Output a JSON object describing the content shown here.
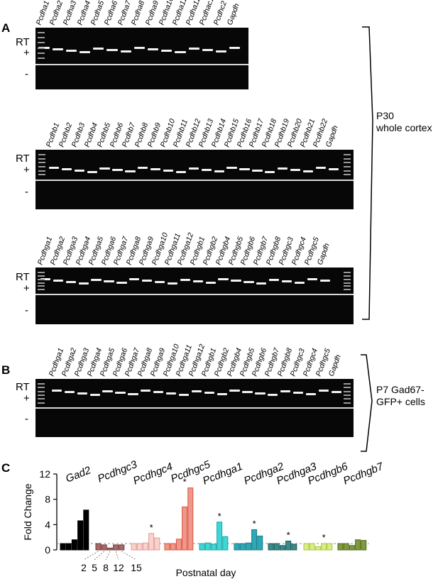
{
  "figure": {
    "panels": {
      "a": "A",
      "b": "B",
      "c": "C"
    },
    "rt_label": "RT",
    "plus": "+",
    "minus": "-",
    "p30_text_line1": "P30",
    "p30_text_line2": "whole cortex",
    "p7_text_line1": "P7 Gad67-",
    "p7_text_line2": "GFP+ cells",
    "gel1_lanes": [
      "Pcdha1",
      "Pcdha2",
      "Pcdha3",
      "Pcdha4",
      "Pcdha5",
      "Pcdha6",
      "Pcdha7",
      "Pcdha8",
      "Pcdha9",
      "Pcdha10",
      "Pcdha11",
      "Pcdha12",
      "Pcdhac1",
      "Pcdhc2",
      "Gapdh"
    ],
    "gel2_lanes": [
      "Pcdhb1",
      "Pcdhb2",
      "Pcdhb3",
      "Pcdhb4",
      "Pcdhb5",
      "Pcdhb6",
      "Pcdhb7",
      "Pcdhb8",
      "Pcdhb9",
      "Pcdhb10",
      "Pcdhb11",
      "Pcdhb12",
      "Pcdhb13",
      "Pcdhb14",
      "Pcdhb15",
      "Pcdhb16",
      "Pcdhb17",
      "Pcdhb18",
      "Pcdhb19",
      "Pcdhb20",
      "Pcdhb21",
      "Pcdhb22",
      "Gapdh"
    ],
    "gel3_lanes": [
      "Pcdhga1",
      "Pcdhga2",
      "Pcdhga3",
      "Pcdhga4",
      "Pcdhga5",
      "Pcdhga6",
      "Pcdhga7",
      "Pcdhga8",
      "Pcdhga9",
      "Pcdhga10",
      "Pcdhga11",
      "Pcdhga12",
      "Pcdhgb1",
      "Pcdhgb2",
      "Pcdhgb4",
      "Pcdhgb5",
      "Pcdhgb6",
      "Pcdhgb7",
      "Pcdhgb8",
      "Pcdhgc3",
      "Pcdhgc4",
      "Pcdhgc5",
      "Gapdh"
    ],
    "gel4_lanes": [
      "Pcdhga1",
      "Pcdhga2",
      "Pcdhga3",
      "Pcdhga4",
      "Pcdhga5",
      "Pcdhga6",
      "Pcdhga7",
      "Pcdhga8",
      "Pcdhga9",
      "Pcdhga10",
      "Pcdhga11",
      "Pcdhga12",
      "Pcdhgb1",
      "Pcdhgb2",
      "Pcdhgb4",
      "Pcdhgb5",
      "Pcdhgb6",
      "Pcdhgb7",
      "Pcdhgb8",
      "Pcdhgc3",
      "Pcdhgc4",
      "Pcdhgc5",
      "Gapdh"
    ]
  },
  "chart_data": {
    "type": "bar",
    "ylabel": "Fold Change",
    "xlabel": "Postnatal day",
    "ylim": [
      0,
      12
    ],
    "yticks": [
      "0",
      "4",
      "8",
      "12"
    ],
    "xticks": [
      "2",
      "5",
      "8",
      "12",
      "15"
    ],
    "groups": [
      {
        "name": "Gad2",
        "color": "#000000",
        "fill": "#000000",
        "values": [
          1.0,
          1.0,
          1.6,
          4.6,
          6.3
        ],
        "star": false
      },
      {
        "name": "Pcdhgc3",
        "color": "#7a3a3a",
        "fill": "#a36b6b",
        "values": [
          1.0,
          0.8,
          0.3,
          0.8,
          0.8
        ],
        "star": false
      },
      {
        "name": "Pcdhgc4",
        "color": "#e89a90",
        "fill": "#f6d3ce",
        "values": [
          1.0,
          1.0,
          1.1,
          2.6,
          1.9
        ],
        "star": true
      },
      {
        "name": "Pcdhgc5",
        "color": "#d7553d",
        "fill": "#f0968a",
        "values": [
          1.0,
          1.0,
          1.7,
          6.8,
          9.8
        ],
        "star": true
      },
      {
        "name": "Pcdhga1",
        "color": "#18a7a7",
        "fill": "#3fd6d6",
        "values": [
          1.0,
          1.1,
          0.9,
          4.4,
          2.1
        ],
        "star": true
      },
      {
        "name": "Pcdhga2",
        "color": "#1e7b86",
        "fill": "#2ca9b8",
        "values": [
          1.0,
          1.0,
          1.1,
          3.2,
          2.2
        ],
        "star": true
      },
      {
        "name": "Pcdhga3",
        "color": "#1d5c5c",
        "fill": "#3a8a8a",
        "values": [
          1.0,
          1.0,
          0.7,
          1.4,
          0.9
        ],
        "star": true
      },
      {
        "name": "Pcdhgb6",
        "color": "#a8c83a",
        "fill": "#d9ec8a",
        "values": [
          1.0,
          1.0,
          0.5,
          1.0,
          1.0
        ],
        "star": true
      },
      {
        "name": "Pcdhgb7",
        "color": "#4f6a1e",
        "fill": "#7f9a3e",
        "values": [
          1.0,
          1.0,
          0.7,
          1.6,
          1.5
        ],
        "star": false
      }
    ],
    "star_symbol": "*",
    "reference_line": 1
  }
}
